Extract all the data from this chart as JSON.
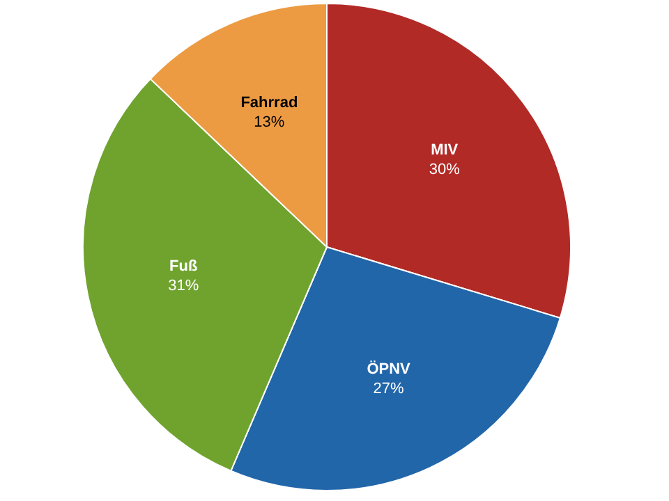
{
  "chart_data": {
    "type": "pie",
    "categories": [
      "MIV",
      "ÖPNV",
      "Fuß",
      "Fahrrad"
    ],
    "values": [
      30,
      27,
      31,
      13
    ],
    "value_labels": [
      "30%",
      "27%",
      "31%",
      "13%"
    ],
    "colors": [
      "#b22a26",
      "#2266aa",
      "#6fa32e",
      "#ec9b43"
    ]
  }
}
